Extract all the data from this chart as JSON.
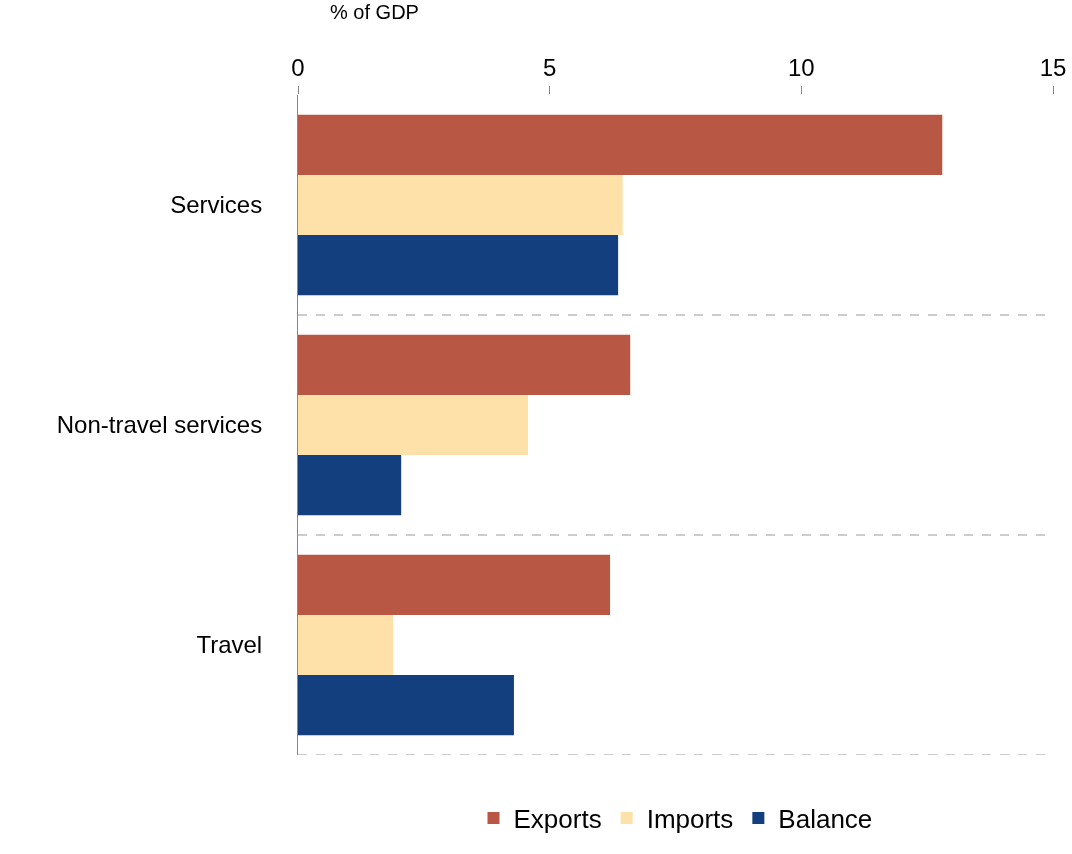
{
  "chart_data": {
    "type": "bar",
    "orientation": "horizontal",
    "xlabel": "% of GDP",
    "categories": [
      "Services",
      "Non-travel services",
      "Travel"
    ],
    "series": [
      {
        "name": "Exports",
        "color": "#b85744",
        "values": [
          12.8,
          6.6,
          6.2
        ]
      },
      {
        "name": "Imports",
        "color": "#fde1a8",
        "values": [
          6.45,
          4.57,
          1.89
        ]
      },
      {
        "name": "Balance",
        "color": "#133f7f",
        "values": [
          6.36,
          2.05,
          4.29
        ]
      }
    ],
    "xlim": [
      0,
      15
    ],
    "xticks": [
      0,
      5,
      10,
      15
    ],
    "grid": "y",
    "legend": "bottom"
  }
}
